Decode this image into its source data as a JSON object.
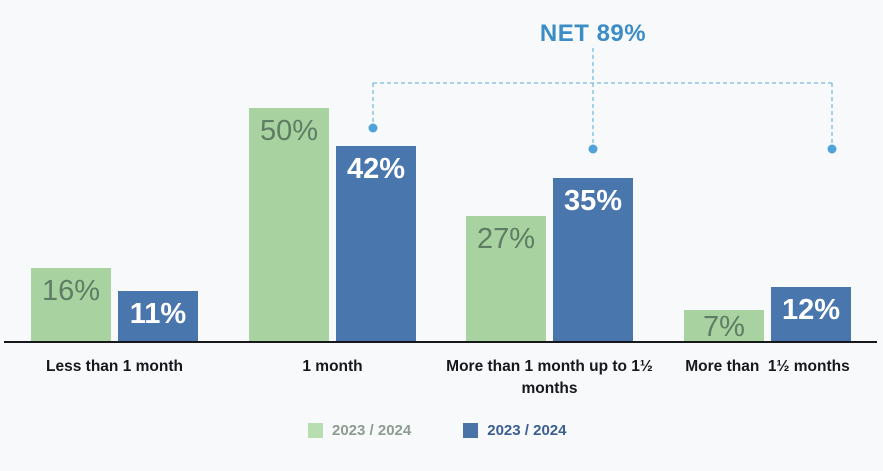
{
  "chart_data": {
    "type": "bar",
    "title": "NET 89%",
    "categories": [
      "Less than 1 month",
      "1 month",
      "More than 1 month up to 1½ months",
      "More than  1½ months"
    ],
    "series": [
      {
        "name": "2023 / 2024",
        "color": "#a8d3a1",
        "label_color": "#5e7d64",
        "values": [
          16,
          50,
          27,
          7
        ]
      },
      {
        "name": "2023 / 2024",
        "color": "#4a76ae",
        "label_color": "#ffffff",
        "values": [
          11,
          42,
          35,
          12
        ]
      }
    ],
    "value_suffix": "%",
    "ylim": [
      0,
      60
    ],
    "grid": false,
    "legend_position": "bottom",
    "axis_color": "#17181c",
    "background": "#f8f9fa",
    "annotation": {
      "label": "NET 89%",
      "text_color": "#3c8dc5",
      "line_color": "#79bcdc",
      "dot_color": "#4fa3d9",
      "covers_values": [
        42,
        35,
        12
      ],
      "covers_categories": [
        "1 month",
        "More than 1 month up to 1½ months",
        "More than  1½ months"
      ]
    }
  },
  "legend": {
    "items": [
      {
        "label": "2023 / 2024",
        "swatch": "#b8ddb0",
        "text_color": "#8c9c90"
      },
      {
        "label": "2023 / 2024",
        "swatch": "#4a74a8",
        "text_color": "#3a5e94"
      }
    ]
  }
}
